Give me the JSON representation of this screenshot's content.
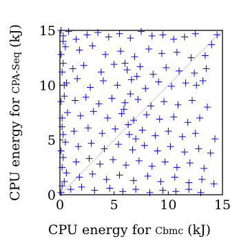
{
  "chart_data": {
    "type": "scatter",
    "title": "",
    "xlabel_prefix": "CPU energy for ",
    "xlabel_name": "Cbmc",
    "xlabel_suffix": " (kJ)",
    "ylabel_prefix": "CPU energy for ",
    "ylabel_name": "CPA-Seq",
    "ylabel_suffix": " (kJ)",
    "xlim": [
      0,
      15
    ],
    "ylim": [
      0,
      15
    ],
    "xticks": [
      "0",
      "5",
      "10",
      "15"
    ],
    "yticks": [
      "0",
      "5",
      "10",
      "15"
    ],
    "marker": "+",
    "grid": false,
    "diagonal": true,
    "colors": {
      "points": "#0000ff",
      "diagonal": "#c8c8c8",
      "axes": "#000000"
    },
    "series": [
      {
        "points": [
          [
            0.1,
            15.0
          ],
          [
            0.3,
            14.5
          ],
          [
            0.8,
            14.9
          ],
          [
            1.5,
            14.2
          ],
          [
            2.5,
            14.6
          ],
          [
            3.5,
            14.8
          ],
          [
            4.5,
            14.4
          ],
          [
            5.5,
            14.7
          ],
          [
            6.5,
            14.3
          ],
          [
            7.5,
            14.9
          ],
          [
            8.5,
            14.5
          ],
          [
            9.5,
            14.6
          ],
          [
            10.5,
            14.2
          ],
          [
            11.5,
            14.4
          ],
          [
            12.5,
            14.7
          ],
          [
            14.5,
            14.6
          ],
          [
            14.0,
            13.7
          ],
          [
            0.5,
            13.5
          ],
          [
            1.8,
            13.2
          ],
          [
            3.0,
            13.6
          ],
          [
            4.2,
            12.8
          ],
          [
            5.6,
            13.1
          ],
          [
            6.9,
            12.6
          ],
          [
            8.2,
            13.3
          ],
          [
            9.4,
            12.9
          ],
          [
            10.8,
            13.0
          ],
          [
            12.1,
            12.5
          ],
          [
            13.4,
            12.7
          ],
          [
            0.3,
            12.0
          ],
          [
            1.2,
            11.5
          ],
          [
            2.2,
            11.8
          ],
          [
            3.8,
            11.2
          ],
          [
            5.0,
            11.9
          ],
          [
            6.2,
            11.4
          ],
          [
            7.4,
            11.7
          ],
          [
            8.6,
            11.0
          ],
          [
            9.8,
            11.6
          ],
          [
            11.0,
            11.3
          ],
          [
            12.4,
            11.1
          ],
          [
            13.5,
            11.5
          ],
          [
            0.6,
            10.2
          ],
          [
            1.6,
            10.6
          ],
          [
            2.8,
            9.8
          ],
          [
            4.0,
            10.4
          ],
          [
            5.3,
            10.0
          ],
          [
            6.6,
            10.5
          ],
          [
            7.9,
            9.7
          ],
          [
            9.1,
            10.3
          ],
          [
            10.3,
            9.9
          ],
          [
            11.6,
            10.2
          ],
          [
            12.6,
            10.0
          ],
          [
            13.2,
            10.4
          ],
          [
            0.4,
            9.0
          ],
          [
            1.4,
            8.6
          ],
          [
            2.4,
            8.9
          ],
          [
            3.6,
            8.3
          ],
          [
            4.8,
            8.8
          ],
          [
            6.0,
            8.4
          ],
          [
            7.2,
            8.7
          ],
          [
            8.4,
            8.1
          ],
          [
            9.6,
            8.5
          ],
          [
            10.9,
            8.2
          ],
          [
            12.2,
            8.6
          ],
          [
            13.6,
            8.0
          ],
          [
            0.7,
            7.5
          ],
          [
            1.9,
            7.2
          ],
          [
            3.1,
            7.6
          ],
          [
            4.4,
            7.0
          ],
          [
            5.7,
            7.4
          ],
          [
            6.8,
            6.8
          ],
          [
            8.0,
            7.3
          ],
          [
            9.2,
            6.9
          ],
          [
            10.5,
            7.1
          ],
          [
            11.8,
            6.6
          ],
          [
            12.9,
            7.0
          ],
          [
            0.2,
            6.2
          ],
          [
            1.3,
            5.8
          ],
          [
            2.6,
            6.1
          ],
          [
            3.9,
            5.6
          ],
          [
            5.1,
            6.0
          ],
          [
            6.4,
            5.5
          ],
          [
            7.6,
            5.9
          ],
          [
            8.8,
            5.4
          ],
          [
            10.0,
            5.8
          ],
          [
            11.3,
            5.3
          ],
          [
            12.5,
            5.6
          ],
          [
            14.3,
            5.1
          ],
          [
            0.5,
            4.8
          ],
          [
            1.7,
            4.4
          ],
          [
            2.9,
            4.7
          ],
          [
            4.1,
            4.2
          ],
          [
            5.4,
            4.6
          ],
          [
            6.7,
            4.1
          ],
          [
            7.8,
            4.5
          ],
          [
            9.0,
            4.0
          ],
          [
            10.2,
            4.4
          ],
          [
            11.5,
            3.9
          ],
          [
            12.8,
            4.2
          ],
          [
            13.9,
            3.8
          ],
          [
            0.3,
            3.4
          ],
          [
            1.5,
            3.0
          ],
          [
            2.7,
            3.3
          ],
          [
            3.7,
            2.8
          ],
          [
            4.9,
            3.2
          ],
          [
            6.1,
            2.7
          ],
          [
            7.3,
            3.1
          ],
          [
            8.5,
            2.6
          ],
          [
            9.7,
            3.0
          ],
          [
            10.8,
            2.5
          ],
          [
            12.0,
            2.9
          ],
          [
            13.3,
            2.4
          ],
          [
            0.6,
            2.0
          ],
          [
            1.8,
            1.6
          ],
          [
            3.0,
            1.9
          ],
          [
            4.3,
            1.4
          ],
          [
            5.5,
            1.8
          ],
          [
            6.8,
            1.3
          ],
          [
            8.1,
            1.7
          ],
          [
            9.3,
            1.2
          ],
          [
            10.6,
            1.6
          ],
          [
            11.9,
            1.1
          ],
          [
            13.1,
            1.4
          ],
          [
            14.2,
            1.0
          ],
          [
            0.2,
            0.8
          ],
          [
            1.0,
            0.5
          ],
          [
            2.0,
            0.7
          ],
          [
            3.2,
            0.4
          ],
          [
            4.6,
            0.6
          ],
          [
            5.8,
            0.3
          ],
          [
            7.0,
            0.5
          ],
          [
            8.3,
            0.2
          ],
          [
            9.5,
            0.4
          ],
          [
            10.7,
            0.3
          ],
          [
            11.9,
            0.5
          ],
          [
            13.0,
            0.2
          ],
          [
            0.1,
            0.2
          ],
          [
            0.4,
            1.2
          ],
          [
            0.2,
            2.5
          ],
          [
            0.1,
            4.0
          ],
          [
            0.3,
            5.5
          ],
          [
            0.2,
            7.0
          ],
          [
            0.1,
            8.5
          ],
          [
            0.4,
            10.0
          ],
          [
            0.2,
            11.2
          ],
          [
            0.1,
            12.8
          ],
          [
            0.3,
            14.0
          ],
          [
            6.0,
            12.0
          ],
          [
            6.5,
            9.2
          ],
          [
            7.1,
            10.8
          ],
          [
            5.9,
            7.8
          ],
          [
            6.3,
            6.4
          ],
          [
            7.0,
            5.1
          ]
        ]
      }
    ]
  }
}
